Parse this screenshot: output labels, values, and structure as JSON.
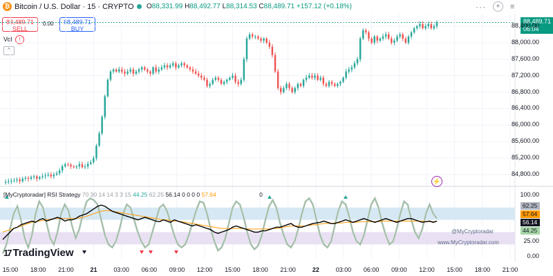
{
  "header": {
    "symbol": "Bitcoin / U.S. Dollar · 15 · CRYPTO",
    "btc_glyph": "₿",
    "ohlc": {
      "o_label": "O",
      "o": "88,331.99",
      "h_label": "H",
      "h": "88,492.77",
      "l_label": "L",
      "l": "88,314.53",
      "c_label": "C",
      "c": "88,489.71",
      "change": "+157.12 (+0.18%)"
    }
  },
  "trade": {
    "sell_price": "88,489.71",
    "sell_label": "SELL",
    "spread": "0.00",
    "buy_price": "88,489.71",
    "buy_label": "BUY"
  },
  "vol_label": "Vol",
  "icons": {
    "vol_alert": "!",
    "collapse": "^",
    "menu": "···",
    "add": "+",
    "lines": "≡",
    "bolt": "⚡"
  },
  "price_axis": {
    "ticks": [
      "88,400.00",
      "88,000.00",
      "87,600.00",
      "87,200.00",
      "86,800.00",
      "86,400.00",
      "86,000.00",
      "85,600.00",
      "85,200.00",
      "84,800.00"
    ],
    "current_price": "88,489.71",
    "countdown": "06:04"
  },
  "rsi": {
    "indicator_name": "[MyCryptoradar] RSI Strategy",
    "params": "70 30 14 14 3 3 15",
    "values": {
      "v1": "44.25",
      "v2": "62.25",
      "v3": "56.14",
      "zeros": "0 0 0 0",
      "v4": "57.64",
      "trailing": "0"
    },
    "axis_ticks": [
      "100.00",
      "25.00",
      "0.00"
    ],
    "tags": [
      {
        "label": "62.25",
        "color": "#b2b5be",
        "text_color": "#131722"
      },
      {
        "label": "57.64",
        "color": "#ff9800",
        "text_color": "#131722"
      },
      {
        "label": "56.14",
        "color": "#131722",
        "text_color": "#ffffff"
      },
      {
        "label": "44.25",
        "color": "#a5d6a7",
        "text_color": "#131722"
      }
    ],
    "watermark_handle": "@MyCryptoradar",
    "watermark_site": "www.MyCryptoradar.com"
  },
  "time_axis": {
    "ticks": [
      "15:00",
      "18:00",
      "21:00",
      "21",
      "03:00",
      "06:00",
      "09:00",
      "12:00",
      "15:00",
      "18:00",
      "21:00",
      "22",
      "03:00",
      "06:00",
      "09:00",
      "12:00",
      "15:00",
      "18:00",
      "21:00"
    ]
  },
  "brand": {
    "logo_mark": "17",
    "logo_text": "TradingView"
  },
  "colors": {
    "up": "#26a69a",
    "down": "#ef5350",
    "ma": "#ff9800",
    "rsi_line": "#000000",
    "stoch": "#8fb59a",
    "overbought_band": "#d6e8f4",
    "oversold_band": "#e9e1f3"
  },
  "chart_data": {
    "type": "candlestick",
    "interval": "15",
    "ylim": [
      84600,
      88700
    ],
    "price_path": [
      84600,
      84620,
      84640,
      84650,
      84660,
      84680,
      84640,
      84700,
      84720,
      84700,
      84740,
      84760,
      84700,
      84740,
      84760,
      84780,
      84800,
      84760,
      84800,
      84830,
      84900,
      85000,
      85050,
      85040,
      85000,
      84980,
      85000,
      85050,
      84980,
      85000,
      85060,
      85100,
      85200,
      85500,
      85800,
      86200,
      86700,
      87100,
      87300,
      87350,
      87300,
      87350,
      87300,
      87250,
      87300,
      87350,
      87250,
      87300,
      87350,
      87400,
      87350,
      87300,
      87250,
      87400,
      87300,
      87350,
      87400,
      87450,
      87400,
      87450,
      87500,
      87400,
      87450,
      87500,
      87450,
      87400,
      87350,
      87300,
      87250,
      87200,
      87150,
      87100,
      86950,
      87000,
      87100,
      87150,
      87100,
      87000,
      87050,
      87100,
      87150,
      87200,
      87050,
      87000,
      87100,
      87600,
      88100,
      88200,
      88150,
      88150,
      88100,
      88050,
      88100,
      88000,
      87900,
      87700,
      87300,
      86900,
      86800,
      86900,
      87000,
      86900,
      86800,
      86900,
      87000,
      86950,
      87100,
      87150,
      87200,
      87150,
      87200,
      87100,
      87150,
      87000,
      86950,
      87050,
      87000,
      86950,
      87000,
      87050,
      87150,
      87300,
      87350,
      87400,
      87500,
      87600,
      88100,
      88300,
      88250,
      88100,
      88000,
      88150,
      88050,
      88100,
      88150,
      88200,
      88100,
      88000,
      88050,
      88150,
      88200,
      88100,
      88000,
      88150,
      88250,
      88350,
      88400,
      88450,
      88350,
      88400,
      88450,
      88350,
      88400,
      88489.71
    ],
    "rsi_path": [
      28,
      34,
      40,
      46,
      48,
      52,
      54,
      56,
      58,
      56,
      60,
      62,
      58,
      60,
      62,
      64,
      62,
      58,
      60,
      60,
      62,
      66,
      68,
      70,
      74,
      78,
      82,
      84,
      82,
      78,
      74,
      72,
      70,
      68,
      66,
      64,
      62,
      60,
      62,
      64,
      62,
      60,
      58,
      57,
      60,
      58,
      56,
      60,
      58,
      56,
      54,
      52,
      50,
      52,
      50,
      48,
      46,
      44,
      40,
      38,
      40,
      42,
      44,
      48,
      50,
      48,
      46,
      44,
      42,
      40,
      40,
      42,
      42,
      44,
      46,
      48,
      48,
      50,
      52,
      54,
      50,
      48,
      48,
      50,
      52,
      54,
      55,
      56,
      58,
      56,
      54,
      54,
      56,
      58,
      60,
      58,
      56,
      58,
      60,
      62,
      60,
      58,
      56,
      58,
      60,
      62,
      60,
      58,
      56,
      58,
      60,
      62,
      62,
      60,
      58,
      56,
      57,
      58,
      56,
      58
    ],
    "ma_path": [
      40,
      42,
      44,
      46,
      48,
      50,
      52,
      54,
      56,
      57,
      58,
      59,
      60,
      61,
      62,
      62,
      62,
      62,
      62,
      62,
      62,
      63,
      64,
      66,
      68,
      70,
      72,
      74,
      75,
      75,
      74,
      73,
      72,
      71,
      70,
      69,
      68,
      67,
      66,
      65,
      64,
      63,
      62,
      61,
      60,
      60,
      59,
      58,
      58,
      57,
      56,
      55,
      54,
      53,
      52,
      51,
      50,
      49,
      48,
      47,
      46,
      46,
      46,
      46,
      46,
      46,
      46,
      45,
      45,
      45,
      45,
      45,
      45,
      45,
      46,
      46,
      47,
      48,
      49,
      50,
      50,
      50,
      50,
      50,
      51,
      52,
      52,
      53,
      54,
      54,
      54,
      55,
      55,
      55,
      56,
      56,
      56,
      56,
      57,
      57,
      57,
      57,
      57,
      57,
      58,
      58,
      58,
      58,
      58,
      58,
      58,
      58,
      58,
      58,
      58,
      58,
      57,
      57,
      57,
      57.64
    ],
    "stoch_path": [
      5,
      20,
      45,
      70,
      82,
      60,
      30,
      15,
      35,
      70,
      90,
      80,
      55,
      30,
      20,
      40,
      70,
      85,
      75,
      50,
      30,
      45,
      70,
      90,
      95,
      92,
      85,
      60,
      35,
      20,
      15,
      25,
      45,
      70,
      85,
      80,
      60,
      40,
      25,
      15,
      20,
      40,
      60,
      80,
      85,
      75,
      55,
      35,
      20,
      15,
      20,
      35,
      55,
      75,
      90,
      88,
      70,
      45,
      25,
      10,
      15,
      30,
      55,
      80,
      90,
      85,
      65,
      40,
      20,
      12,
      18,
      35,
      60,
      82,
      92,
      80,
      55,
      35,
      20,
      15,
      25,
      45,
      70,
      90,
      95,
      85,
      60,
      35,
      20,
      15,
      25,
      50,
      75,
      90,
      85,
      65,
      40,
      25,
      20,
      35,
      60,
      85,
      95,
      80,
      55,
      35,
      20,
      25,
      45,
      70,
      90,
      85,
      60,
      40,
      30,
      45,
      70,
      85,
      70,
      62.25
    ]
  }
}
